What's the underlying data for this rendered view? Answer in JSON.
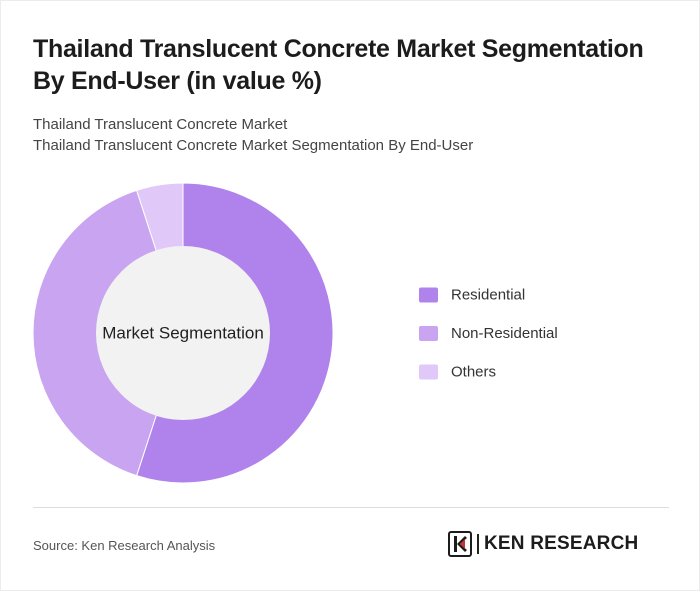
{
  "header": {
    "title": "Thailand Translucent Concrete Market Segmentation By End-User (in value %)",
    "subtitle_line1": "Thailand Translucent Concrete Market",
    "subtitle_line2": "Thailand Translucent Concrete Market Segmentation By End-User"
  },
  "chart_data": {
    "type": "pie",
    "variant": "donut",
    "center_label": "Market Segmentation",
    "categories": [
      "Residential",
      "Non-Residential",
      "Others"
    ],
    "values": [
      55,
      40,
      5
    ],
    "colors": [
      "#b083ec",
      "#c9a4f1",
      "#e0c8f8"
    ],
    "legend_position": "right",
    "center_fill": "#f2f2f2"
  },
  "footer": {
    "source": "Source: Ken Research Analysis",
    "logo_text": "KEN RESEARCH"
  }
}
